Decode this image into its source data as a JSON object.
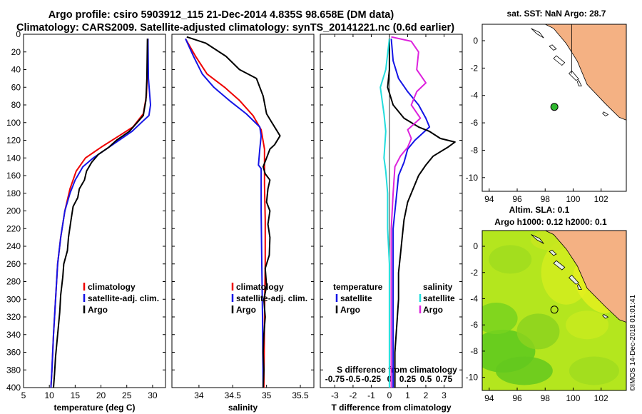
{
  "title": {
    "line1": "Argo profile: csiro 5903912_115 21-Dec-2014 4.835S 98.658E (DM data)",
    "line2": "Climatology: CARS2009. Satellite-adjusted climatology: synTS_20141221.nc (0.6d earlier)"
  },
  "colors": {
    "climatology": "#ee0000",
    "satellite": "#1414e6",
    "argo": "#000000",
    "sat_salinity": "#22dddd",
    "argo_salinity": "#dd22dd",
    "land": "#f4b183",
    "marker": "#2eb82e"
  },
  "chart_data": [
    {
      "type": "line",
      "id": "temperature",
      "xlabel": "temperature (deg C)",
      "xlim": [
        5,
        32.5
      ],
      "ylim": [
        0,
        400
      ],
      "ylabel": "",
      "xticks": [
        "5",
        "10",
        "15",
        "20",
        "25",
        "30"
      ],
      "yticks": [
        "0",
        "20",
        "40",
        "60",
        "80",
        "100",
        "120",
        "140",
        "160",
        "180",
        "200",
        "220",
        "240",
        "260",
        "280",
        "300",
        "320",
        "340",
        "360",
        "380",
        "400"
      ],
      "legend": [
        "climatology",
        "satellite-adj. clim.",
        "Argo"
      ],
      "series": [
        {
          "name": "climatology",
          "color": "#ee0000",
          "points": [
            [
              29.1,
              5
            ],
            [
              29.0,
              40
            ],
            [
              28.8,
              70
            ],
            [
              28.2,
              90
            ],
            [
              26.2,
              105
            ],
            [
              23.5,
              115
            ],
            [
              20.0,
              128
            ],
            [
              17.0,
              140
            ],
            [
              15.2,
              155
            ],
            [
              14.0,
              175
            ],
            [
              13.0,
              200
            ],
            [
              12.2,
              230
            ],
            [
              11.6,
              260
            ],
            [
              11.2,
              300
            ],
            [
              10.8,
              340
            ],
            [
              10.5,
              380
            ],
            [
              10.3,
              400
            ]
          ]
        },
        {
          "name": "satellite-adj. clim.",
          "color": "#1414e6",
          "points": [
            [
              29.1,
              5
            ],
            [
              29.2,
              50
            ],
            [
              29.6,
              80
            ],
            [
              29.3,
              92
            ],
            [
              27.8,
              100
            ],
            [
              26.0,
              110
            ],
            [
              23.5,
              120
            ],
            [
              21.0,
              130
            ],
            [
              18.5,
              140
            ],
            [
              16.5,
              150
            ],
            [
              15.0,
              165
            ],
            [
              14.0,
              180
            ],
            [
              13.0,
              200
            ],
            [
              12.2,
              230
            ],
            [
              11.6,
              260
            ],
            [
              11.2,
              300
            ],
            [
              10.8,
              340
            ],
            [
              10.5,
              380
            ],
            [
              10.3,
              400
            ]
          ]
        },
        {
          "name": "Argo",
          "color": "#000000",
          "points": [
            [
              29.0,
              5
            ],
            [
              28.9,
              50
            ],
            [
              28.7,
              75
            ],
            [
              28.4,
              85
            ],
            [
              28.2,
              92
            ],
            [
              27.0,
              100
            ],
            [
              25.5,
              110
            ],
            [
              23.0,
              120
            ],
            [
              21.5,
              128
            ],
            [
              19.5,
              136
            ],
            [
              18.2,
              145
            ],
            [
              17.2,
              155
            ],
            [
              16.8,
              165
            ],
            [
              15.8,
              175
            ],
            [
              15.5,
              185
            ],
            [
              14.6,
              195
            ],
            [
              14.2,
              210
            ],
            [
              13.7,
              230
            ],
            [
              13.5,
              245
            ],
            [
              12.8,
              260
            ],
            [
              12.6,
              275
            ],
            [
              12.2,
              295
            ],
            [
              12.0,
              315
            ],
            [
              11.6,
              340
            ],
            [
              11.2,
              365
            ],
            [
              11.0,
              385
            ],
            [
              10.8,
              400
            ]
          ]
        }
      ]
    },
    {
      "type": "line",
      "id": "salinity",
      "xlabel": "salinity",
      "xlim": [
        33.6,
        35.7
      ],
      "ylim": [
        0,
        400
      ],
      "xticks": [
        "34",
        "34.5",
        "35",
        "35.5"
      ],
      "legend": [
        "climatology",
        "satellite-adj. clim.",
        "Argo"
      ],
      "series": [
        {
          "name": "climatology",
          "color": "#ee0000",
          "points": [
            [
              33.8,
              5
            ],
            [
              33.95,
              25
            ],
            [
              34.12,
              45
            ],
            [
              34.38,
              60
            ],
            [
              34.6,
              75
            ],
            [
              34.8,
              92
            ],
            [
              34.92,
              108
            ],
            [
              34.97,
              130
            ],
            [
              34.97,
              170
            ],
            [
              34.98,
              210
            ],
            [
              34.98,
              260
            ],
            [
              34.97,
              320
            ],
            [
              34.96,
              400
            ]
          ]
        },
        {
          "name": "satellite-adj. clim.",
          "color": "#1414e6",
          "points": [
            [
              33.8,
              5
            ],
            [
              33.92,
              25
            ],
            [
              34.05,
              45
            ],
            [
              34.22,
              60
            ],
            [
              34.45,
              75
            ],
            [
              34.7,
              90
            ],
            [
              34.9,
              105
            ],
            [
              34.92,
              115
            ],
            [
              34.9,
              130
            ],
            [
              34.88,
              148
            ],
            [
              34.92,
              152
            ],
            [
              34.92,
              200
            ],
            [
              34.93,
              260
            ],
            [
              34.94,
              320
            ],
            [
              34.95,
              400
            ]
          ]
        },
        {
          "name": "Argo",
          "color": "#000000",
          "points": [
            [
              33.82,
              3
            ],
            [
              34.1,
              10
            ],
            [
              34.4,
              25
            ],
            [
              34.6,
              40
            ],
            [
              34.85,
              50
            ],
            [
              34.95,
              70
            ],
            [
              35.0,
              90
            ],
            [
              35.08,
              100
            ],
            [
              35.2,
              115
            ],
            [
              35.12,
              125
            ],
            [
              35.05,
              130
            ],
            [
              35.0,
              140
            ],
            [
              34.95,
              150
            ],
            [
              34.98,
              158
            ],
            [
              35.05,
              165
            ],
            [
              35.02,
              175
            ],
            [
              35.0,
              190
            ],
            [
              35.05,
              200
            ],
            [
              35.02,
              215
            ],
            [
              35.05,
              230
            ],
            [
              35.04,
              250
            ],
            [
              34.98,
              265
            ],
            [
              35.0,
              285
            ],
            [
              34.96,
              300
            ],
            [
              34.98,
              320
            ],
            [
              34.96,
              340
            ],
            [
              34.95,
              360
            ],
            [
              34.96,
              380
            ],
            [
              34.95,
              400
            ]
          ]
        }
      ]
    },
    {
      "type": "line",
      "id": "difference",
      "xlabel": "T difference from climatology",
      "xlabel_top": "S difference from climatology",
      "xlim": [
        -3.8,
        4.0
      ],
      "ylim": [
        0,
        400
      ],
      "xticks": [
        "-3",
        "-2",
        "-1",
        "0",
        "1",
        "2",
        "3"
      ],
      "xticks_top": [
        "-0.75",
        "-0.5",
        "-0.25",
        "0",
        "0.25",
        "0.5",
        "0.75"
      ],
      "legend_left_title": "temperature",
      "legend_left": [
        "satellite",
        "Argo"
      ],
      "legend_right_title": "salinity",
      "legend_right": [
        "satellite",
        "Argo"
      ],
      "series": [
        {
          "name": "T satellite",
          "color": "#1414e6",
          "points": [
            [
              0.1,
              5
            ],
            [
              0.2,
              30
            ],
            [
              0.5,
              50
            ],
            [
              1.0,
              65
            ],
            [
              1.6,
              80
            ],
            [
              2.0,
              95
            ],
            [
              2.2,
              105
            ],
            [
              1.4,
              120
            ],
            [
              1.0,
              130
            ],
            [
              0.8,
              145
            ],
            [
              0.5,
              160
            ],
            [
              0.4,
              180
            ],
            [
              0.2,
              220
            ],
            [
              0.2,
              260
            ],
            [
              0.2,
              320
            ],
            [
              0.2,
              400
            ]
          ]
        },
        {
          "name": "T Argo",
          "color": "#000000",
          "points": [
            [
              0,
              5
            ],
            [
              0.0,
              40
            ],
            [
              -0.1,
              60
            ],
            [
              0.2,
              80
            ],
            [
              0.8,
              95
            ],
            [
              1.6,
              105
            ],
            [
              2.2,
              110
            ],
            [
              2.8,
              118
            ],
            [
              3.6,
              122
            ],
            [
              3.2,
              128
            ],
            [
              2.4,
              138
            ],
            [
              2.0,
              148
            ],
            [
              1.6,
              160
            ],
            [
              1.3,
              175
            ],
            [
              1.0,
              190
            ],
            [
              0.8,
              210
            ],
            [
              0.7,
              230
            ],
            [
              0.6,
              250
            ],
            [
              0.5,
              270
            ],
            [
              0.5,
              300
            ],
            [
              0.4,
              330
            ],
            [
              0.3,
              360
            ],
            [
              0.3,
              400
            ]
          ]
        },
        {
          "name": "S satellite",
          "color": "#22dddd",
          "points": [
            [
              0,
              5
            ],
            [
              -0.2,
              40
            ],
            [
              -0.5,
              60
            ],
            [
              -0.4,
              75
            ],
            [
              -0.3,
              90
            ],
            [
              -0.2,
              110
            ],
            [
              -0.3,
              140
            ],
            [
              -0.2,
              155
            ],
            [
              -0.1,
              180
            ],
            [
              -0.1,
              220
            ],
            [
              0,
              260
            ],
            [
              0,
              320
            ],
            [
              0,
              400
            ]
          ]
        },
        {
          "name": "S Argo",
          "color": "#dd22dd",
          "points": [
            [
              0.1,
              3
            ],
            [
              1.2,
              8
            ],
            [
              1.6,
              20
            ],
            [
              1.5,
              40
            ],
            [
              2.0,
              55
            ],
            [
              1.5,
              65
            ],
            [
              1.2,
              80
            ],
            [
              1.7,
              95
            ],
            [
              1.0,
              108
            ],
            [
              1.2,
              118
            ],
            [
              1.0,
              128
            ],
            [
              0.6,
              138
            ],
            [
              0.3,
              150
            ],
            [
              0.2,
              180
            ],
            [
              0.1,
              220
            ],
            [
              0.1,
              280
            ],
            [
              0.1,
              340
            ],
            [
              0.1,
              400
            ]
          ]
        }
      ]
    },
    {
      "type": "map",
      "id": "sst-map",
      "title": "sat. SST: NaN Argo: 28.7",
      "xlim": [
        93.5,
        103.8
      ],
      "ylim": [
        -11,
        1.2
      ],
      "xticks": [
        "94",
        "96",
        "98",
        "100",
        "102"
      ],
      "yticks": [
        "0",
        "-2",
        "-4",
        "-6",
        "-8",
        "-10"
      ],
      "marker": {
        "lon": 98.658,
        "lat": -4.835
      }
    },
    {
      "type": "map",
      "id": "sla-map",
      "title": "Altim. SLA: 0.1",
      "subtitle": "Argo h1000: 0.12 h2000: 0.1",
      "xlim": [
        93.5,
        103.8
      ],
      "ylim": [
        -11,
        1.2
      ],
      "xticks": [
        "94",
        "96",
        "98",
        "100",
        "102"
      ],
      "yticks": [
        "0",
        "-2",
        "-4",
        "-6",
        "-8",
        "-10"
      ],
      "marker": {
        "lon": 98.658,
        "lat": -4.835
      }
    }
  ],
  "stamp": "©IMOS 14-Dec-2018 01:01:41"
}
